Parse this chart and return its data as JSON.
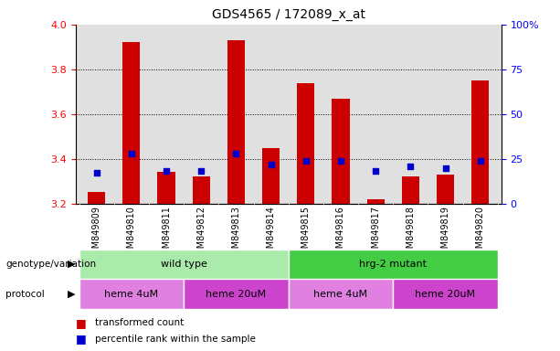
{
  "title": "GDS4565 / 172089_x_at",
  "samples": [
    "GSM849809",
    "GSM849810",
    "GSM849811",
    "GSM849812",
    "GSM849813",
    "GSM849814",
    "GSM849815",
    "GSM849816",
    "GSM849817",
    "GSM849818",
    "GSM849819",
    "GSM849820"
  ],
  "red_values": [
    3.25,
    3.92,
    3.34,
    3.32,
    3.93,
    3.45,
    3.74,
    3.67,
    3.22,
    3.32,
    3.33,
    3.75
  ],
  "blue_values_pct": [
    17,
    28,
    18,
    18,
    28,
    22,
    24,
    24,
    18,
    21,
    20,
    24
  ],
  "ylim_left": [
    3.2,
    4.0
  ],
  "ylim_right": [
    0,
    100
  ],
  "yticks_left": [
    3.2,
    3.4,
    3.6,
    3.8,
    4.0
  ],
  "yticks_right": [
    0,
    25,
    50,
    75,
    100
  ],
  "yticklabels_right": [
    "0",
    "25",
    "50",
    "75",
    "100%"
  ],
  "bar_color": "#cc0000",
  "dot_color": "#0000cc",
  "bar_bottom": 3.2,
  "genotype_groups": [
    {
      "label": "wild type",
      "start": 0,
      "end": 6,
      "color": "#aaeaaa"
    },
    {
      "label": "hrg-2 mutant",
      "start": 6,
      "end": 12,
      "color": "#44cc44"
    }
  ],
  "protocol_groups": [
    {
      "label": "heme 4uM",
      "start": 0,
      "end": 3,
      "color": "#e080e0"
    },
    {
      "label": "heme 20uM",
      "start": 3,
      "end": 6,
      "color": "#cc44cc"
    },
    {
      "label": "heme 4uM",
      "start": 6,
      "end": 9,
      "color": "#e080e0"
    },
    {
      "label": "heme 20uM",
      "start": 9,
      "end": 12,
      "color": "#cc44cc"
    }
  ],
  "legend_items": [
    {
      "color": "#cc0000",
      "label": "transformed count"
    },
    {
      "color": "#0000cc",
      "label": "percentile rank within the sample"
    }
  ],
  "plot_bg_color": "#e0e0e0",
  "label_row_bg": "#c8c8c8",
  "grid_yticks": [
    3.4,
    3.6,
    3.8
  ]
}
